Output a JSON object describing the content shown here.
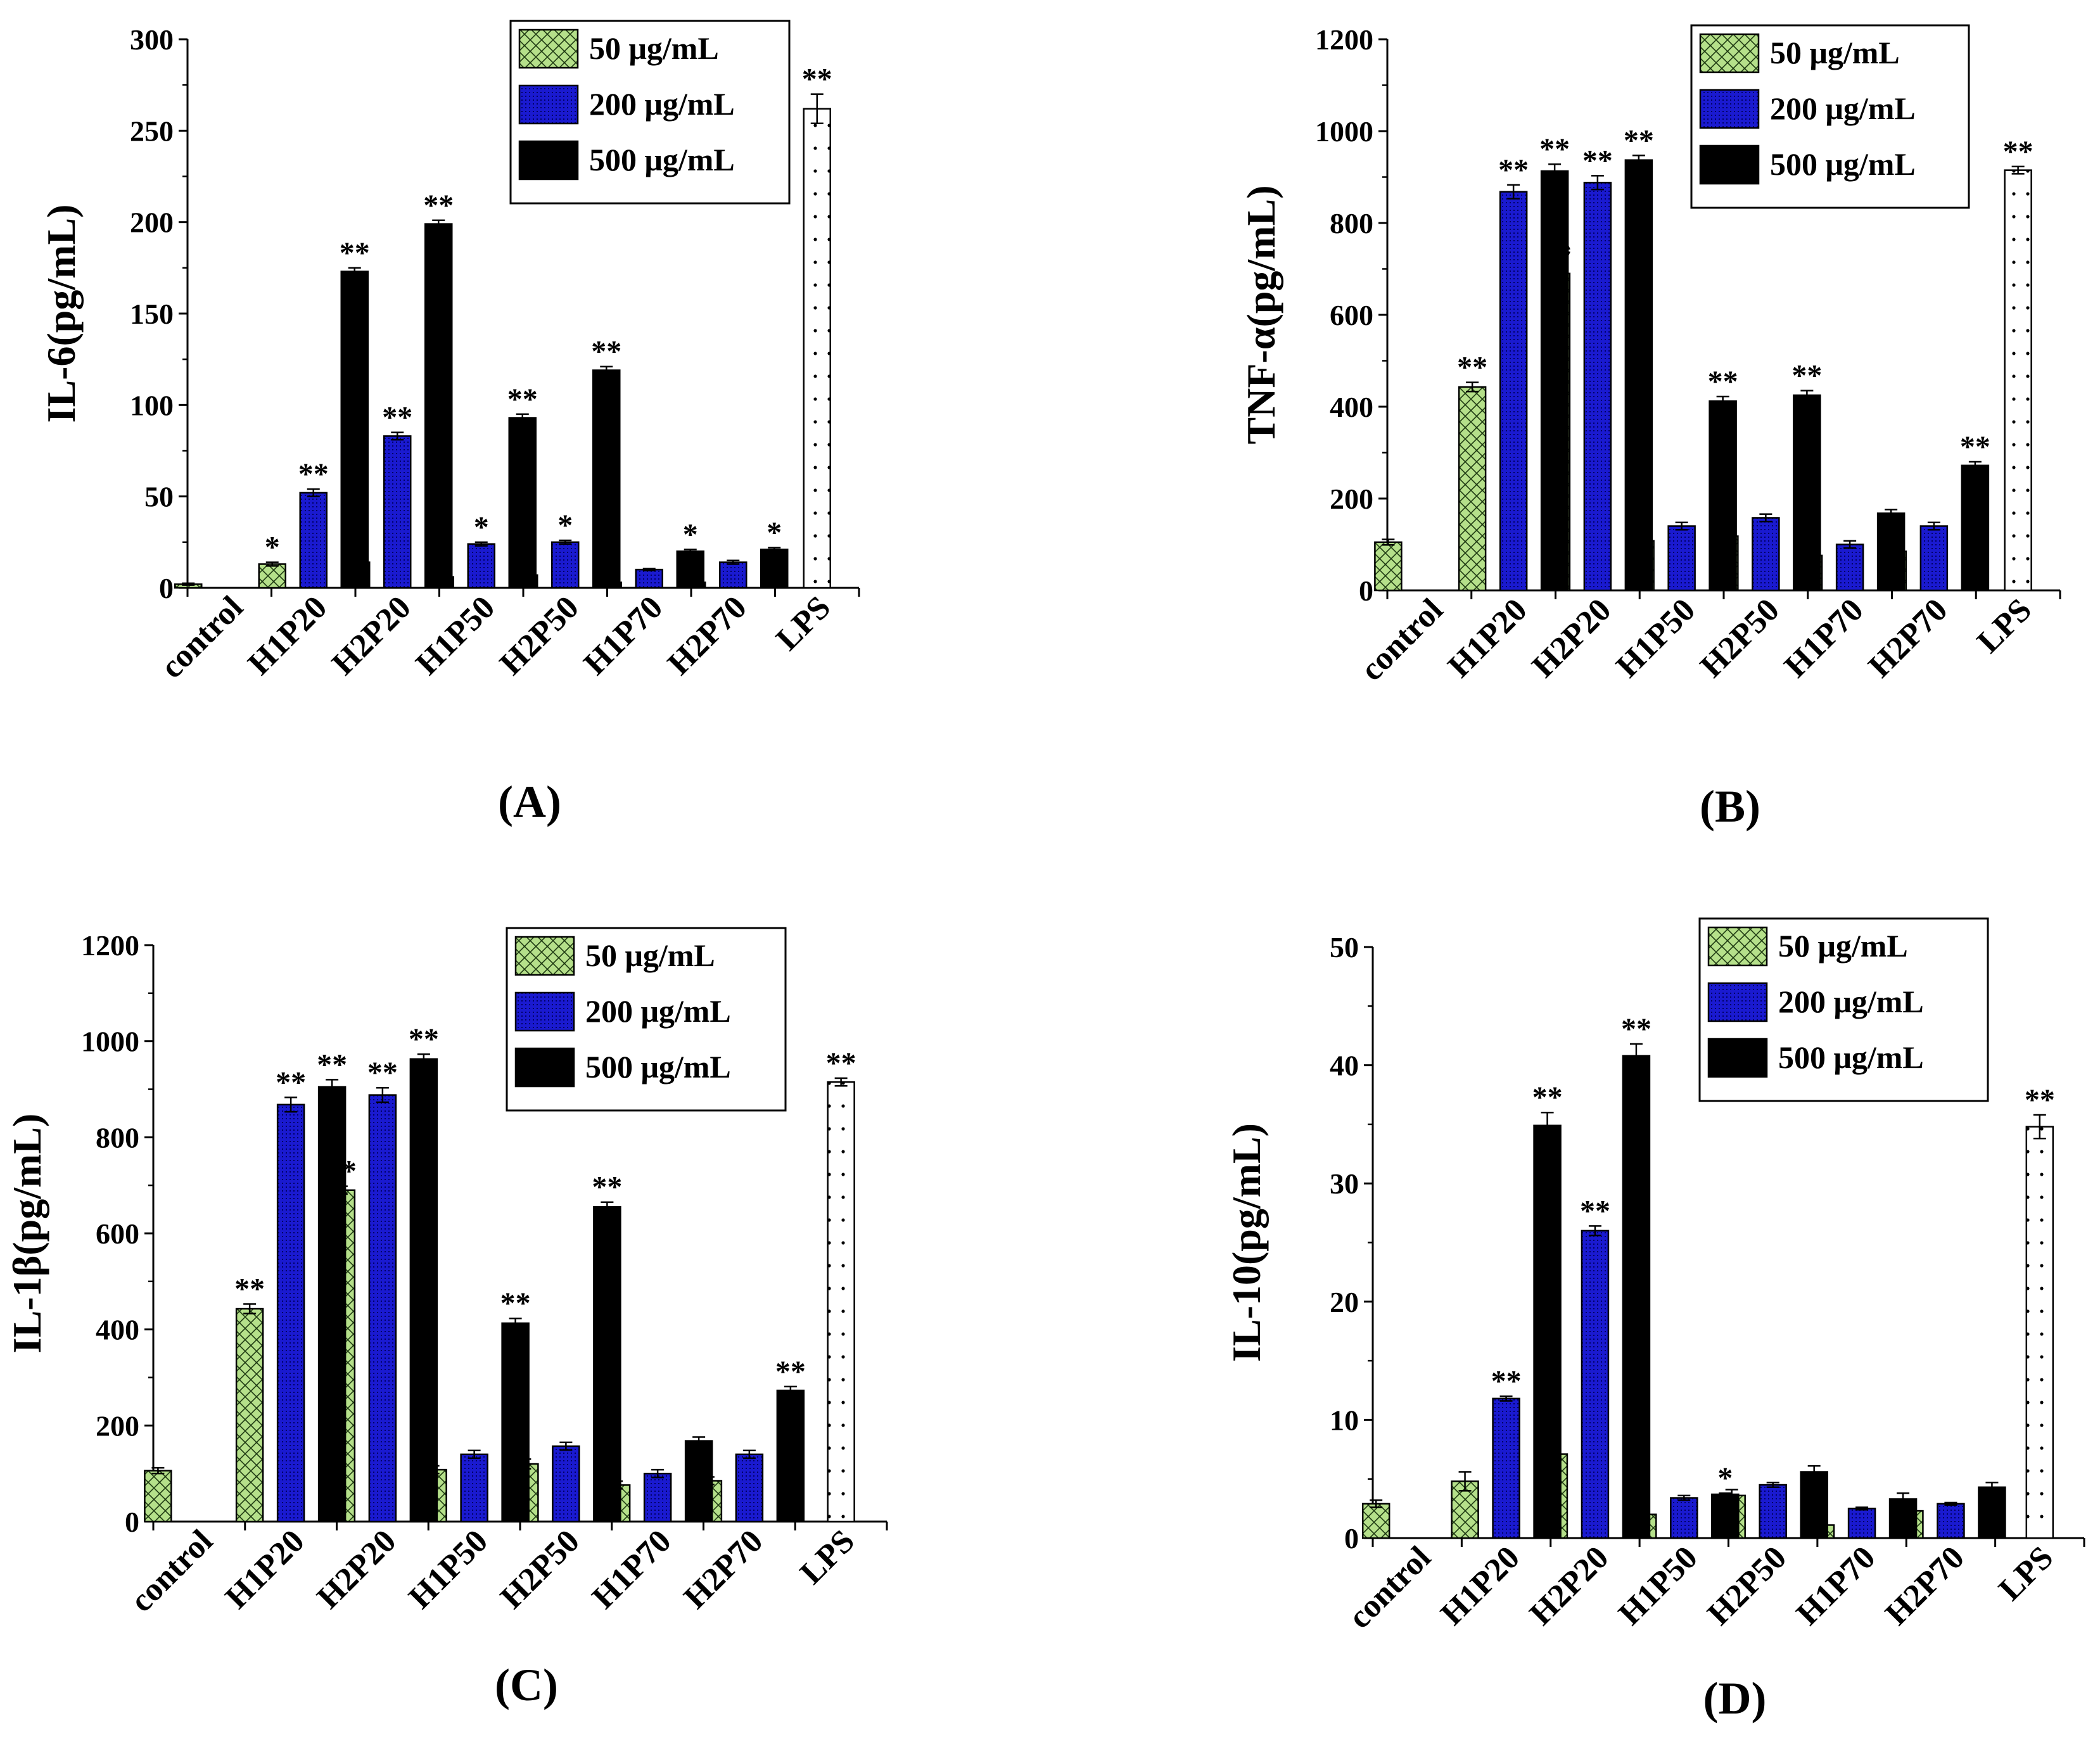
{
  "chart_data": [
    {
      "type": "bar",
      "panel_label": "(A)",
      "ylabel": "IL-6(pg/mL)",
      "ylim": [
        0,
        300
      ],
      "yticks": [
        0,
        50,
        100,
        150,
        200,
        250,
        300
      ],
      "categories": [
        "control",
        "H1P20",
        "H2P20",
        "H1P50",
        "H2P50",
        "H1P70",
        "H2P70",
        "LPS"
      ],
      "legend": {
        "position": "top-right"
      },
      "series": [
        {
          "name": "50 μg/mL",
          "color": "#b5e08a",
          "pattern": "crosshatch",
          "values": [
            2,
            13,
            14,
            6,
            7,
            3,
            3,
            null
          ],
          "errors": [
            0.5,
            1,
            1,
            0.5,
            0.5,
            0.3,
            0.3,
            null
          ],
          "significance": [
            "",
            "*",
            "*",
            "",
            "",
            "",
            "",
            ""
          ]
        },
        {
          "name": "200 μg/mL",
          "color": "#1a1ad0",
          "pattern": "dotted",
          "values": [
            null,
            52,
            83,
            24,
            25,
            10,
            14,
            null
          ],
          "errors": [
            null,
            2,
            2,
            1,
            1,
            0.5,
            1,
            null
          ],
          "significance": [
            "",
            "**",
            "**",
            "*",
            "*",
            "",
            "",
            ""
          ]
        },
        {
          "name": "500 μg/mL",
          "color": "#000000",
          "pattern": "solid",
          "values": [
            null,
            173,
            199,
            93,
            119,
            20,
            21,
            null
          ],
          "errors": [
            null,
            2,
            2,
            2,
            2,
            1,
            1,
            null
          ],
          "significance": [
            "",
            "**",
            "**",
            "**",
            "**",
            "*",
            "*",
            ""
          ]
        },
        {
          "name": "LPS",
          "color": "#ffffff",
          "pattern": "sparse-dots",
          "values": [
            null,
            null,
            null,
            null,
            null,
            null,
            null,
            262
          ],
          "errors": [
            null,
            null,
            null,
            null,
            null,
            null,
            null,
            8
          ],
          "significance": [
            "",
            "",
            "",
            "",
            "",
            "",
            "",
            "**"
          ]
        }
      ]
    },
    {
      "type": "bar",
      "panel_label": "(B)",
      "ylabel": "TNF-α(pg/mL)",
      "ylim": [
        0,
        1200
      ],
      "yticks": [
        0,
        200,
        400,
        600,
        800,
        1000,
        1200
      ],
      "categories": [
        "control",
        "H1P20",
        "H2P20",
        "H1P50",
        "H2P50",
        "H1P70",
        "H2P70",
        "LPS"
      ],
      "legend": {
        "position": "top-right"
      },
      "series": [
        {
          "name": "50 μg/mL",
          "color": "#b5e08a",
          "pattern": "crosshatch",
          "values": [
            105,
            443,
            690,
            108,
            118,
            76,
            85,
            null
          ],
          "errors": [
            6,
            10,
            8,
            10,
            10,
            8,
            8,
            null
          ],
          "significance": [
            "",
            "**",
            "**",
            "",
            "",
            "",
            "",
            ""
          ]
        },
        {
          "name": "200 μg/mL",
          "color": "#1a1ad0",
          "pattern": "dotted",
          "values": [
            null,
            868,
            888,
            140,
            158,
            100,
            140,
            null
          ],
          "errors": [
            null,
            15,
            15,
            8,
            8,
            8,
            8,
            null
          ],
          "significance": [
            "",
            "**",
            "**",
            "",
            "",
            "",
            "",
            ""
          ]
        },
        {
          "name": "500 μg/mL",
          "color": "#000000",
          "pattern": "solid",
          "values": [
            null,
            913,
            937,
            412,
            425,
            168,
            272,
            null
          ],
          "errors": [
            null,
            15,
            10,
            10,
            10,
            8,
            8,
            null
          ],
          "significance": [
            "",
            "**",
            "**",
            "**",
            "**",
            "",
            "**",
            ""
          ]
        },
        {
          "name": "LPS",
          "color": "#ffffff",
          "pattern": "sparse-dots",
          "values": [
            null,
            null,
            null,
            null,
            null,
            null,
            null,
            915
          ],
          "errors": [
            null,
            null,
            null,
            null,
            null,
            null,
            null,
            8
          ],
          "significance": [
            "",
            "",
            "",
            "",
            "",
            "",
            "",
            "**"
          ]
        }
      ]
    },
    {
      "type": "bar",
      "panel_label": "(C)",
      "ylabel": "IL-1β(pg/mL)",
      "ylim": [
        0,
        1200
      ],
      "yticks": [
        0,
        200,
        400,
        600,
        800,
        1000,
        1200
      ],
      "categories": [
        "control",
        "H1P20",
        "H2P20",
        "H1P50",
        "H2P50",
        "H1P70",
        "H2P70",
        "LPS"
      ],
      "legend": {
        "position": "top-right"
      },
      "series": [
        {
          "name": "50 μg/mL",
          "color": "#b5e08a",
          "pattern": "crosshatch",
          "values": [
            106,
            443,
            690,
            108,
            120,
            76,
            85,
            null
          ],
          "errors": [
            6,
            10,
            8,
            8,
            10,
            8,
            8,
            null
          ],
          "significance": [
            "",
            "**",
            "**",
            "",
            "",
            "",
            "",
            ""
          ]
        },
        {
          "name": "200 μg/mL",
          "color": "#1a1ad0",
          "pattern": "dotted",
          "values": [
            null,
            868,
            888,
            140,
            157,
            100,
            140,
            null
          ],
          "errors": [
            null,
            15,
            15,
            8,
            8,
            8,
            8,
            null
          ],
          "significance": [
            "",
            "**",
            "**",
            "",
            "",
            "",
            "",
            ""
          ]
        },
        {
          "name": "500 μg/mL",
          "color": "#000000",
          "pattern": "solid",
          "values": [
            null,
            905,
            963,
            413,
            655,
            168,
            273,
            null
          ],
          "errors": [
            null,
            15,
            10,
            10,
            10,
            8,
            8,
            null
          ],
          "significance": [
            "",
            "**",
            "**",
            "**",
            "**",
            "",
            "**",
            ""
          ]
        },
        {
          "name": "LPS",
          "color": "#ffffff",
          "pattern": "sparse-dots",
          "values": [
            null,
            null,
            null,
            null,
            null,
            null,
            null,
            915
          ],
          "errors": [
            null,
            null,
            null,
            null,
            null,
            null,
            null,
            8
          ],
          "significance": [
            "",
            "",
            "",
            "",
            "",
            "",
            "",
            "**"
          ]
        }
      ]
    },
    {
      "type": "bar",
      "panel_label": "(D)",
      "ylabel": "IL-10(pg/mL)",
      "ylim": [
        0,
        50
      ],
      "yticks": [
        0,
        10,
        20,
        30,
        40,
        50
      ],
      "categories": [
        "control",
        "H1P20",
        "H2P20",
        "H1P50",
        "H2P50",
        "H1P70",
        "H2P70",
        "LPS"
      ],
      "legend": {
        "position": "top-right"
      },
      "series": [
        {
          "name": "50 μg/mL",
          "color": "#b5e08a",
          "pattern": "crosshatch",
          "values": [
            2.9,
            4.8,
            7.1,
            2.0,
            3.6,
            1.1,
            2.3,
            null
          ],
          "errors": [
            0.3,
            0.8,
            0.3,
            1.0,
            0.5,
            0.5,
            0.5,
            null
          ],
          "significance": [
            "",
            "",
            "*",
            "",
            "",
            "",
            "",
            ""
          ]
        },
        {
          "name": "200 μg/mL",
          "color": "#1a1ad0",
          "pattern": "dotted",
          "values": [
            null,
            11.8,
            26.0,
            3.4,
            4.5,
            2.5,
            2.9,
            null
          ],
          "errors": [
            null,
            0.2,
            0.4,
            0.2,
            0.2,
            0.1,
            0.1,
            null
          ],
          "significance": [
            "",
            "**",
            "**",
            "",
            "",
            "",
            "",
            ""
          ]
        },
        {
          "name": "500 μg/mL",
          "color": "#000000",
          "pattern": "solid",
          "values": [
            null,
            34.9,
            40.8,
            3.7,
            5.6,
            3.3,
            4.3,
            null
          ],
          "errors": [
            null,
            1.1,
            1.0,
            0.1,
            0.5,
            0.5,
            0.4,
            null
          ],
          "significance": [
            "",
            "**",
            "**",
            "*",
            "",
            "",
            "",
            ""
          ]
        },
        {
          "name": "LPS",
          "color": "#ffffff",
          "pattern": "sparse-dots",
          "values": [
            null,
            null,
            null,
            null,
            null,
            null,
            null,
            34.8
          ],
          "errors": [
            null,
            null,
            null,
            null,
            null,
            null,
            null,
            1.0
          ],
          "significance": [
            "",
            "",
            "",
            "",
            "",
            "",
            "",
            "**"
          ]
        }
      ]
    }
  ]
}
